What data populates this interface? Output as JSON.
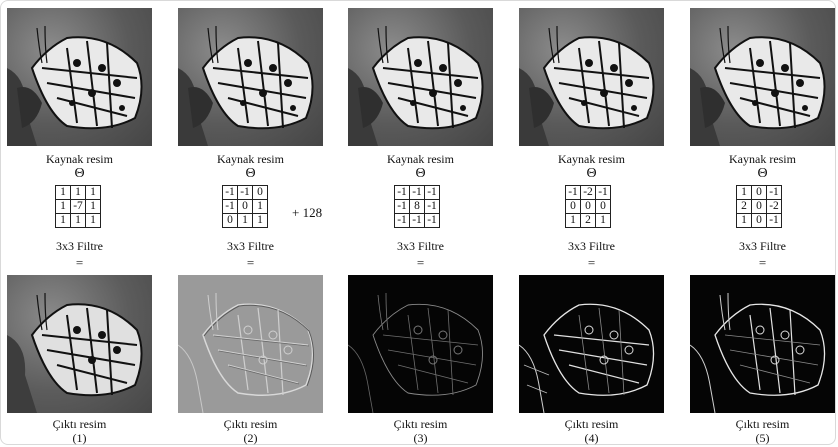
{
  "labels": {
    "source": "Kaynak resim",
    "operator": "Θ",
    "filter": "3x3 Filtre",
    "equals": "=",
    "output": "Çıktı resim"
  },
  "columns": [
    {
      "kernel": [
        [
          "1",
          "1",
          "1"
        ],
        [
          "1",
          "-7",
          "1"
        ],
        [
          "1",
          "1",
          "1"
        ]
      ],
      "offset": "",
      "index": "(1)"
    },
    {
      "kernel": [
        [
          "-1",
          "-1",
          "0"
        ],
        [
          "-1",
          "0",
          "1"
        ],
        [
          "0",
          "1",
          "1"
        ]
      ],
      "offset": "+ 128",
      "index": "(2)"
    },
    {
      "kernel": [
        [
          "-1",
          "-1",
          "-1"
        ],
        [
          "-1",
          "8",
          "-1"
        ],
        [
          "-1",
          "-1",
          "-1"
        ]
      ],
      "offset": "",
      "index": "(3)"
    },
    {
      "kernel": [
        [
          "-1",
          "-2",
          "-1"
        ],
        [
          "0",
          "0",
          "0"
        ],
        [
          "1",
          "2",
          "1"
        ]
      ],
      "offset": "",
      "index": "(4)"
    },
    {
      "kernel": [
        [
          "1",
          "0",
          "-1"
        ],
        [
          "2",
          "0",
          "-2"
        ],
        [
          "1",
          "0",
          "-1"
        ]
      ],
      "offset": "",
      "index": "(5)"
    }
  ]
}
